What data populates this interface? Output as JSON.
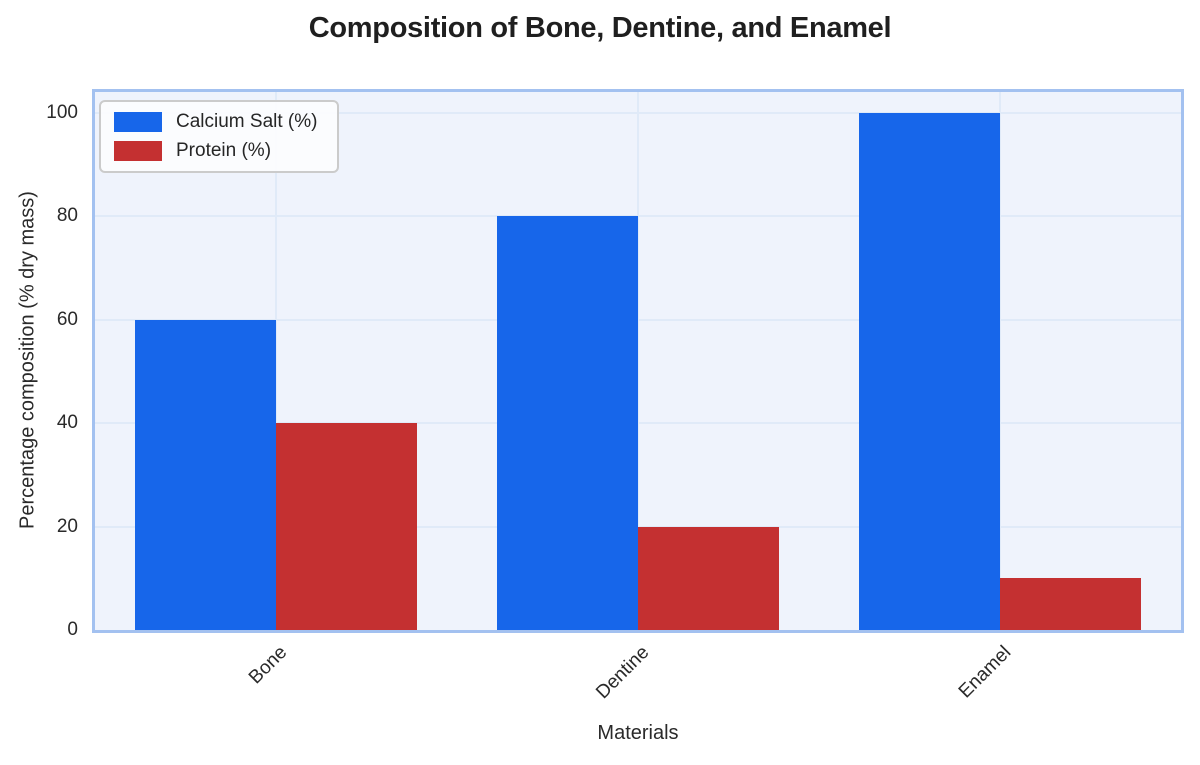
{
  "chart_data": {
    "type": "bar",
    "title": "Composition of Bone, Dentine, and Enamel",
    "xlabel": "Materials",
    "ylabel": "Percentage composition (% dry mass)",
    "categories": [
      "Bone",
      "Dentine",
      "Enamel"
    ],
    "series": [
      {
        "name": "Calcium Salt (%)",
        "key": "calcium-salt",
        "color": "#1766ea",
        "values": [
          60,
          80,
          100
        ]
      },
      {
        "name": "Protein (%)",
        "key": "protein",
        "color": "#c43031",
        "values": [
          40,
          20,
          10
        ]
      }
    ],
    "yticks": [
      0,
      20,
      40,
      60,
      80,
      100
    ],
    "ylim": [
      0,
      104
    ],
    "grid": true,
    "legend_position": "upper left"
  },
  "colors": {
    "plot_background": "#eff3fc",
    "plot_border": "#a3c1f0",
    "gridline": "#e0eaf8",
    "text": "#2a2a2a",
    "title_text": "#1f1f1f",
    "legend_border": "#cbcbcb",
    "legend_background": "#fbfcfe",
    "figure_background": "#ffffff"
  }
}
